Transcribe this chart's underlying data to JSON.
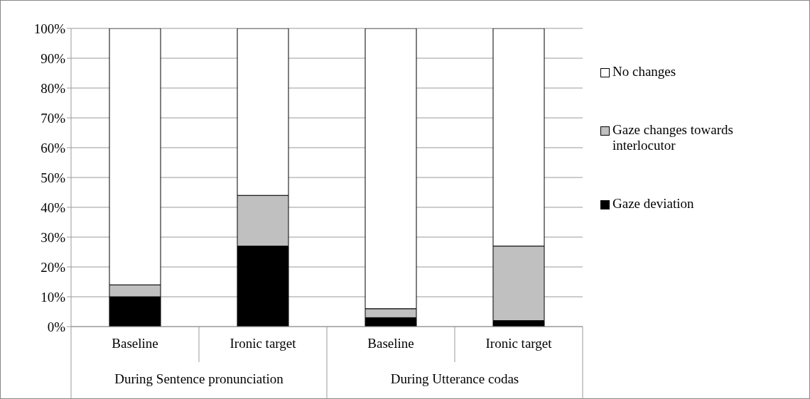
{
  "chart_data": {
    "type": "bar",
    "stacked": true,
    "categories": [
      "Baseline",
      "Ironic target",
      "Baseline",
      "Ironic target"
    ],
    "series": [
      {
        "name": "Gaze deviation",
        "color": "#000000",
        "values": [
          10,
          27,
          3,
          2
        ]
      },
      {
        "name": "Gaze changes towards interlocutor",
        "color": "#c0c0c0",
        "values": [
          4,
          17,
          3,
          25
        ]
      },
      {
        "name": "No changes",
        "color": "#ffffff",
        "values": [
          86,
          56,
          94,
          73
        ]
      }
    ],
    "annotations": [
      "During Sentence pronunciation",
      "During Utterance codas"
    ],
    "ylim": [
      0,
      100
    ],
    "yticks": [
      {
        "value": 0,
        "label": "0%"
      },
      {
        "value": 10,
        "label": "10%"
      },
      {
        "value": 20,
        "label": "20%"
      },
      {
        "value": 30,
        "label": "30%"
      },
      {
        "value": 40,
        "label": "40%"
      },
      {
        "value": 50,
        "label": "50%"
      },
      {
        "value": 60,
        "label": "60%"
      },
      {
        "value": 70,
        "label": "70%"
      },
      {
        "value": 80,
        "label": "80%"
      },
      {
        "value": 90,
        "label": "90%"
      },
      {
        "value": 100,
        "label": "100%"
      }
    ],
    "grid": "y",
    "legend": "right"
  }
}
